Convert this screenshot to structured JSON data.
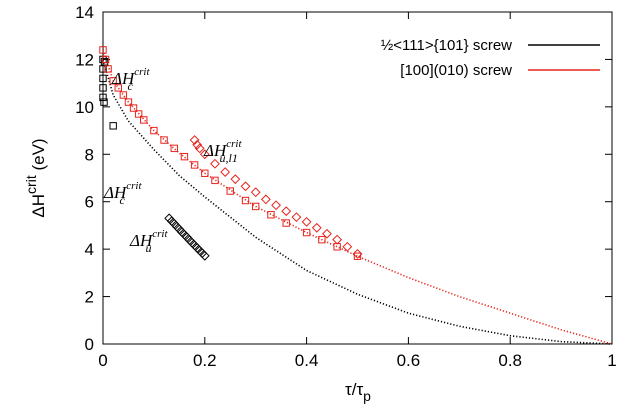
{
  "chart_data": {
    "type": "line",
    "xlabel": {
      "base": "τ/τ",
      "sub": "p"
    },
    "ylabel": {
      "base": "ΔH",
      "sup": "crit",
      "tail": " (eV)"
    },
    "xlim": [
      0,
      1
    ],
    "xticks": [
      0,
      0.2,
      0.4,
      0.6,
      0.8,
      1
    ],
    "ylim": [
      0,
      14
    ],
    "yticks": [
      0,
      2,
      4,
      6,
      8,
      10,
      12,
      14
    ],
    "legend": "top-right",
    "series": [
      {
        "name": "½<111>{101} screw",
        "color": "#000000",
        "style": "dotted",
        "x": [
          0,
          0.02,
          0.05,
          0.1,
          0.15,
          0.2,
          0.3,
          0.4,
          0.5,
          0.6,
          0.7,
          0.8,
          0.9,
          1
        ],
        "values": [
          12.0,
          10.5,
          9.4,
          8.2,
          7.1,
          6.2,
          4.5,
          3.1,
          2.1,
          1.3,
          0.75,
          0.35,
          0.1,
          0
        ]
      },
      {
        "name": "[100](010) screw",
        "color": "#e8231c",
        "style": "dotted",
        "x": [
          0,
          0.02,
          0.05,
          0.1,
          0.15,
          0.2,
          0.3,
          0.4,
          0.5,
          0.6,
          0.7,
          0.8,
          0.9,
          1
        ],
        "values": [
          12.4,
          11.1,
          10.2,
          9.0,
          8.05,
          7.2,
          5.8,
          4.7,
          3.7,
          2.8,
          2.0,
          1.3,
          0.6,
          0
        ]
      },
      {
        "color": "#000000",
        "style": "square",
        "x": [
          0,
          0,
          0,
          0,
          0,
          0.002,
          0.003,
          0.02
        ],
        "values": [
          12.0,
          11.6,
          11.2,
          10.8,
          10.4,
          10.2,
          11.9,
          9.2
        ]
      },
      {
        "color": "#000000",
        "style": "diamond",
        "x": [
          0.13,
          0.135,
          0.14,
          0.145,
          0.15,
          0.155,
          0.16,
          0.165,
          0.17,
          0.175,
          0.18,
          0.185,
          0.19,
          0.195,
          0.2
        ],
        "values": [
          5.3,
          5.18,
          5.07,
          4.95,
          4.84,
          4.72,
          4.61,
          4.5,
          4.38,
          4.27,
          4.16,
          4.05,
          3.94,
          3.83,
          3.72
        ]
      },
      {
        "color": "#e8231c",
        "style": "square",
        "x": [
          0,
          0.005,
          0.01,
          0.02,
          0.03,
          0.04,
          0.05,
          0.06,
          0.07,
          0.08,
          0.1,
          0.12,
          0.14,
          0.16,
          0.18,
          0.2,
          0.22,
          0.25,
          0.28,
          0.3,
          0.33,
          0.36,
          0.4,
          0.43,
          0.46,
          0.5
        ],
        "values": [
          12.4,
          12.0,
          11.6,
          11.1,
          10.8,
          10.5,
          10.2,
          9.95,
          9.7,
          9.45,
          9.0,
          8.6,
          8.25,
          7.9,
          7.55,
          7.2,
          6.9,
          6.45,
          6.05,
          5.8,
          5.45,
          5.1,
          4.7,
          4.4,
          4.1,
          3.7
        ]
      },
      {
        "color": "#e8231c",
        "style": "diamond",
        "x": [
          0.18,
          0.185,
          0.19,
          0.2,
          0.22,
          0.24,
          0.26,
          0.28,
          0.3,
          0.32,
          0.34,
          0.36,
          0.38,
          0.4,
          0.42,
          0.44,
          0.46,
          0.48,
          0.5
        ],
        "values": [
          8.6,
          8.4,
          8.25,
          8.0,
          7.6,
          7.25,
          6.95,
          6.65,
          6.4,
          6.1,
          5.85,
          5.6,
          5.35,
          5.15,
          4.9,
          4.65,
          4.4,
          4.1,
          3.8
        ]
      }
    ],
    "annotations": [
      {
        "base": "ΔH",
        "sub": "c",
        "sup": "crit",
        "color": "#000000"
      },
      {
        "base": "ΔH",
        "sub": "u,l1",
        "sup": "crit",
        "color": "#000000"
      },
      {
        "base": "ΔH",
        "sub": "c",
        "sup": "crit",
        "color": "#000000"
      },
      {
        "base": "ΔH",
        "sub": "u",
        "sup": "crit",
        "color": "#000000"
      }
    ]
  }
}
